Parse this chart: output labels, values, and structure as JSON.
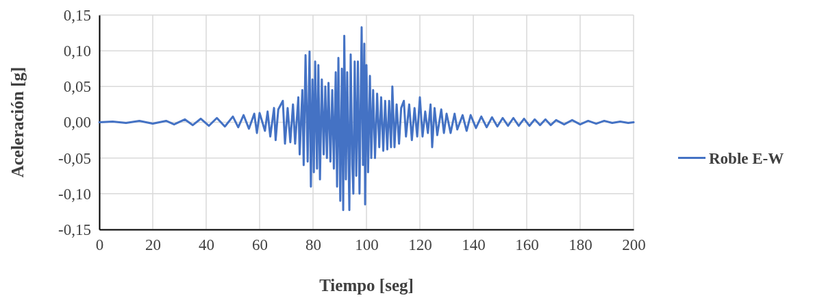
{
  "chart_data": {
    "type": "line",
    "xlabel": "Tiempo [seg]",
    "ylabel": "Aceleración [g]",
    "xlim": [
      0,
      200
    ],
    "xticks": [
      0,
      20,
      40,
      60,
      80,
      100,
      120,
      140,
      160,
      180,
      200
    ],
    "ylim": [
      -0.15,
      0.15
    ],
    "yticks": [
      {
        "value": -0.15,
        "label": "-0,15"
      },
      {
        "value": -0.1,
        "label": "-0,10"
      },
      {
        "value": -0.05,
        "label": "-0,05"
      },
      {
        "value": 0,
        "label": "0,00"
      },
      {
        "value": 0.05,
        "label": "0,05"
      },
      {
        "value": 0.1,
        "label": "0,10"
      },
      {
        "value": 0.15,
        "label": "0,15"
      }
    ],
    "grid": true,
    "legend": "right",
    "marker": "none",
    "line_style": "solid",
    "series": [
      {
        "name": "Roble E-W",
        "color": "#4472c4",
        "x": [
          0,
          5,
          10,
          15,
          20,
          25,
          28,
          32,
          35,
          38,
          41,
          44,
          47,
          50,
          52,
          54,
          56,
          58,
          59,
          60,
          62,
          63,
          64,
          65.4,
          66,
          67,
          68.7,
          69.5,
          70.5,
          71.5,
          72.5,
          73.3,
          74.5,
          75,
          76,
          76.5,
          77.2,
          78,
          78.7,
          79.2,
          79.8,
          80.3,
          80.8,
          81.5,
          82,
          82.6,
          83.3,
          84,
          84.6,
          85.2,
          85.8,
          86.5,
          87.2,
          87.8,
          88.5,
          89,
          89.5,
          90.2,
          90.8,
          91.3,
          91.7,
          92.3,
          92.8,
          93.6,
          94.1,
          94.7,
          95.1,
          95.6,
          96.2,
          96.8,
          97.4,
          98.2,
          98.7,
          99.2,
          99.5,
          100,
          100.6,
          101.3,
          101.8,
          102.5,
          103.2,
          104,
          104.8,
          105.5,
          106.3,
          107,
          107.8,
          108.5,
          109.2,
          109.7,
          110.5,
          111.3,
          112.2,
          113,
          114,
          114.8,
          116,
          117,
          118,
          119,
          120,
          121,
          122,
          123,
          124,
          124.6,
          125.5,
          126.5,
          128,
          129,
          130,
          131.5,
          133,
          134,
          136,
          137.5,
          139,
          141,
          143,
          145,
          147,
          149,
          151,
          153,
          155,
          157,
          159,
          161,
          163,
          165,
          167,
          169,
          171,
          174,
          177,
          180,
          183,
          186,
          189,
          192,
          195,
          198,
          200
        ],
        "values": [
          0,
          0.001,
          -0.001,
          0.002,
          -0.002,
          0.002,
          -0.003,
          0.004,
          -0.004,
          0.005,
          -0.005,
          0.006,
          -0.006,
          0.008,
          -0.007,
          0.01,
          -0.009,
          0.012,
          -0.015,
          0.013,
          -0.012,
          0.015,
          -0.02,
          0.02,
          -0.025,
          0.018,
          0.03,
          -0.03,
          0.02,
          -0.028,
          0.025,
          -0.03,
          0.035,
          -0.045,
          0.045,
          -0.06,
          0.094,
          -0.055,
          0.099,
          -0.09,
          0.06,
          -0.07,
          0.085,
          -0.065,
          0.08,
          -0.08,
          0.06,
          -0.045,
          0.05,
          -0.05,
          0.055,
          -0.055,
          0.045,
          -0.065,
          0.07,
          -0.09,
          0.09,
          -0.11,
          0.075,
          -0.123,
          0.121,
          -0.08,
          0.07,
          -0.123,
          0.095,
          -0.06,
          -0.1,
          0.085,
          -0.075,
          0.085,
          -0.1,
          0.133,
          -0.06,
          0.11,
          -0.115,
          0.08,
          -0.07,
          0.065,
          -0.05,
          0.045,
          -0.05,
          0.04,
          -0.035,
          0.035,
          -0.04,
          0.03,
          -0.038,
          0.03,
          -0.035,
          0.05,
          -0.035,
          0.025,
          -0.03,
          0.02,
          0.03,
          -0.02,
          0.025,
          -0.025,
          0.02,
          -0.02,
          0.035,
          -0.02,
          0.015,
          -0.015,
          0.025,
          -0.035,
          0.02,
          -0.018,
          0.018,
          -0.015,
          0.012,
          -0.015,
          0.012,
          -0.01,
          0.01,
          -0.012,
          0.01,
          -0.008,
          0.008,
          -0.007,
          0.007,
          -0.006,
          0.006,
          -0.005,
          0.006,
          -0.005,
          0.005,
          -0.005,
          0.004,
          -0.004,
          0.004,
          -0.004,
          0.003,
          -0.003,
          0.003,
          -0.003,
          0.002,
          -0.002,
          0.002,
          -0.001,
          0.001,
          -0.001,
          0
        ]
      }
    ]
  }
}
